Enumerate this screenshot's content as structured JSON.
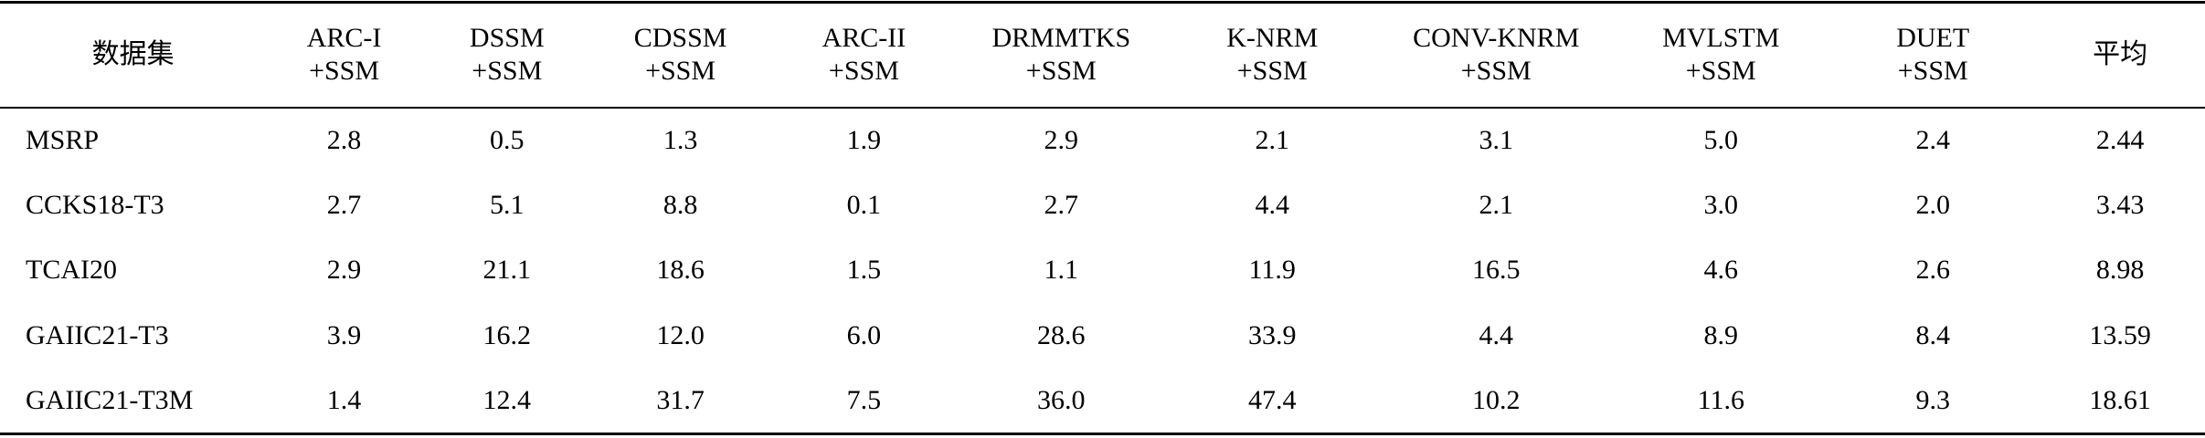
{
  "table": {
    "header": [
      [
        "数据集"
      ],
      [
        "ARC-I",
        "+SSM"
      ],
      [
        "DSSM",
        "+SSM"
      ],
      [
        "CDSSM",
        "+SSM"
      ],
      [
        "ARC-II",
        "+SSM"
      ],
      [
        "DRMMTKS",
        "+SSM"
      ],
      [
        "K-NRM",
        "+SSM"
      ],
      [
        "CONV-KNRM",
        "+SSM"
      ],
      [
        "MVLSTM",
        "+SSM"
      ],
      [
        "DUET",
        "+SSM"
      ],
      [
        "平均"
      ]
    ],
    "rows": [
      [
        "MSRP",
        "2.8",
        "0.5",
        "1.3",
        "1.9",
        "2.9",
        "2.1",
        "3.1",
        "5.0",
        "2.4",
        "2.44"
      ],
      [
        "CCKS18-T3",
        "2.7",
        "5.1",
        "8.8",
        "0.1",
        "2.7",
        "4.4",
        "2.1",
        "3.0",
        "2.0",
        "3.43"
      ],
      [
        "TCAI20",
        "2.9",
        "21.1",
        "18.6",
        "1.5",
        "1.1",
        "11.9",
        "16.5",
        "4.6",
        "2.6",
        "8.98"
      ],
      [
        "GAIIC21-T3",
        "3.9",
        "16.2",
        "12.0",
        "6.0",
        "28.6",
        "33.9",
        "4.4",
        "8.9",
        "8.4",
        "13.59"
      ],
      [
        "GAIIC21-T3M",
        "1.4",
        "12.4",
        "31.7",
        "7.5",
        "36.0",
        "47.4",
        "10.2",
        "11.6",
        "9.3",
        "18.61"
      ]
    ]
  }
}
